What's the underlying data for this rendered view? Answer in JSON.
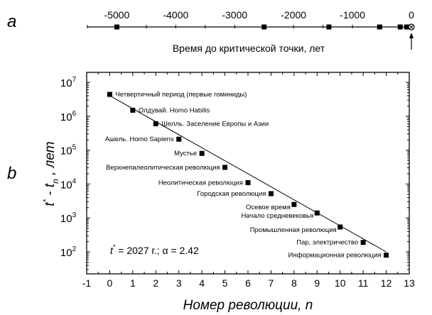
{
  "panels": {
    "a": "a",
    "b": "b"
  },
  "chart_data": [
    {
      "type": "scatter",
      "panel": "a",
      "xlabel": "Время до критической точки, лет",
      "xlim": [
        -5500,
        0
      ],
      "xticks": [
        -5000,
        -4000,
        -3000,
        -2000,
        -1000,
        0
      ],
      "xtick_labels": [
        "-5000",
        "-4000",
        "-3000",
        "-2000",
        "-1000",
        "0"
      ],
      "points": [
        -5000,
        -2500,
        -1400,
        -540,
        -190,
        -80,
        -25
      ],
      "critical_point": 0
    },
    {
      "type": "scatter",
      "panel": "b",
      "xlabel": "Номер революции, n",
      "ylabel_main": "t",
      "ylabel_star": "*",
      "ylabel_mid": " - t",
      "ylabel_sub": "n",
      "ylabel_tail": " , лет",
      "xlim": [
        -1,
        13
      ],
      "ylim": [
        30,
        15000000
      ],
      "yscale": "log",
      "xticks": [
        -1,
        0,
        1,
        2,
        3,
        4,
        5,
        6,
        7,
        8,
        9,
        10,
        11,
        12,
        13
      ],
      "yticks": [
        100,
        1000,
        10000,
        100000,
        1000000,
        10000000
      ],
      "ytick_labels": [
        {
          "base": "10",
          "exp": "2"
        },
        {
          "base": "10",
          "exp": "3"
        },
        {
          "base": "10",
          "exp": "4"
        },
        {
          "base": "10",
          "exp": "5"
        },
        {
          "base": "10",
          "exp": "6"
        },
        {
          "base": "10",
          "exp": "7"
        }
      ],
      "points": [
        {
          "n": 0,
          "value": 4400000,
          "label": "Четвертичный период (первые гоминиды)",
          "label_side": "right"
        },
        {
          "n": 1,
          "value": 1500000,
          "label": "Олдувай. Homo Habilis",
          "label_side": "right"
        },
        {
          "n": 2,
          "value": 600000,
          "label": "Шелль. Заселение Европы и Азии",
          "label_side": "right"
        },
        {
          "n": 3,
          "value": 210000,
          "label": "Ашель. Homo Sapiens",
          "label_side": "left"
        },
        {
          "n": 4,
          "value": 80000,
          "label": "Мустье",
          "label_side": "left"
        },
        {
          "n": 5,
          "value": 31000,
          "label": "Верхнепалеолитическая революция",
          "label_side": "left"
        },
        {
          "n": 6,
          "value": 11000,
          "label": "Неолитическая революция",
          "label_side": "left"
        },
        {
          "n": 7,
          "value": 5200,
          "label": "Городская революция",
          "label_side": "left"
        },
        {
          "n": 8,
          "value": 2500,
          "label": "Осевое время",
          "label_side": "below-left"
        },
        {
          "n": 9,
          "value": 1400,
          "label": "Начало средневековья",
          "label_side": "below-left"
        },
        {
          "n": 10,
          "value": 540,
          "label": "Промышленная революция",
          "label_side": "below-left"
        },
        {
          "n": 11,
          "value": 190,
          "label": "Пар, электричество",
          "label_side": "left"
        },
        {
          "n": 12,
          "value": 80,
          "label": "Информационная революция",
          "label_side": "left"
        }
      ],
      "fit": {
        "t_star": 2027,
        "alpha": 2.42,
        "value_at_n12": 100,
        "n_range": [
          0,
          12
        ]
      },
      "annotation": {
        "t": "t",
        "star": "*",
        "text": " = 2027 г.;  α = 2.42"
      }
    }
  ]
}
